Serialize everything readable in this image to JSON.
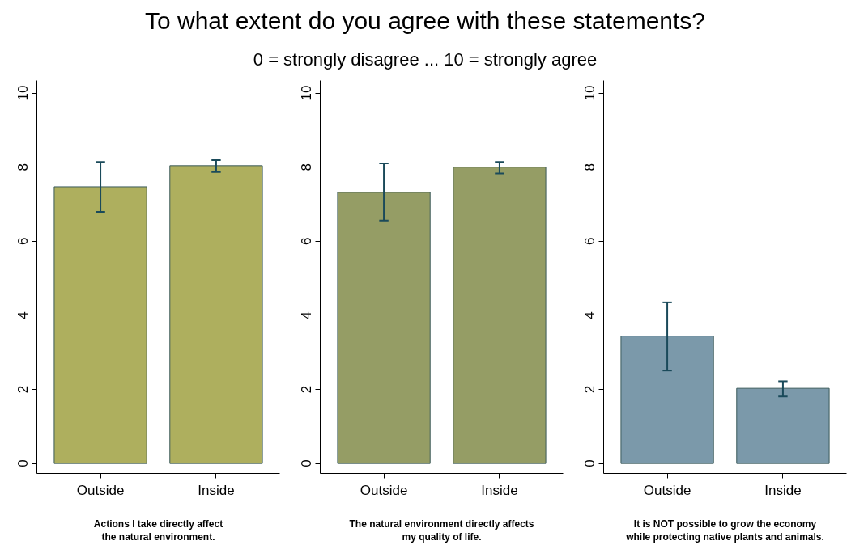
{
  "chart_data": [
    {
      "type": "bar",
      "xlabel": "Actions I take directly affect\nthe natural environment.",
      "categories": [
        "Outside",
        "Inside"
      ],
      "values": [
        7.47,
        8.04
      ],
      "errors": [
        [
          6.79,
          8.14
        ],
        [
          7.87,
          8.19
        ]
      ],
      "color": "#aeaf5e",
      "ylim": [
        -0.27,
        10.34
      ],
      "yticks": [
        0,
        2,
        4,
        6,
        8,
        10
      ],
      "grid": false
    },
    {
      "type": "bar",
      "title": "To what extent do you agree with these statements?",
      "subtitle": "0 = strongly disagree ... 10 = strongly agree",
      "xlabel": "The natural environment directly affects\nmy quality of life.",
      "categories": [
        "Outside",
        "Inside"
      ],
      "values": [
        7.32,
        8.0
      ],
      "errors": [
        [
          6.56,
          8.1
        ],
        [
          7.83,
          8.14
        ]
      ],
      "color": "#959d65",
      "ylim": [
        -0.27,
        10.34
      ],
      "yticks": [
        0,
        2,
        4,
        6,
        8,
        10
      ],
      "grid": false
    },
    {
      "type": "bar",
      "xlabel": "It is NOT possible to grow the economy\nwhile protecting native plants and animals.",
      "categories": [
        "Outside",
        "Inside"
      ],
      "values": [
        3.44,
        2.03
      ],
      "errors": [
        [
          2.51,
          4.35
        ],
        [
          1.81,
          2.22
        ]
      ],
      "color": "#7b99aa",
      "ylim": [
        -0.27,
        10.34
      ],
      "yticks": [
        0,
        2,
        4,
        6,
        8,
        10
      ],
      "grid": false
    }
  ]
}
